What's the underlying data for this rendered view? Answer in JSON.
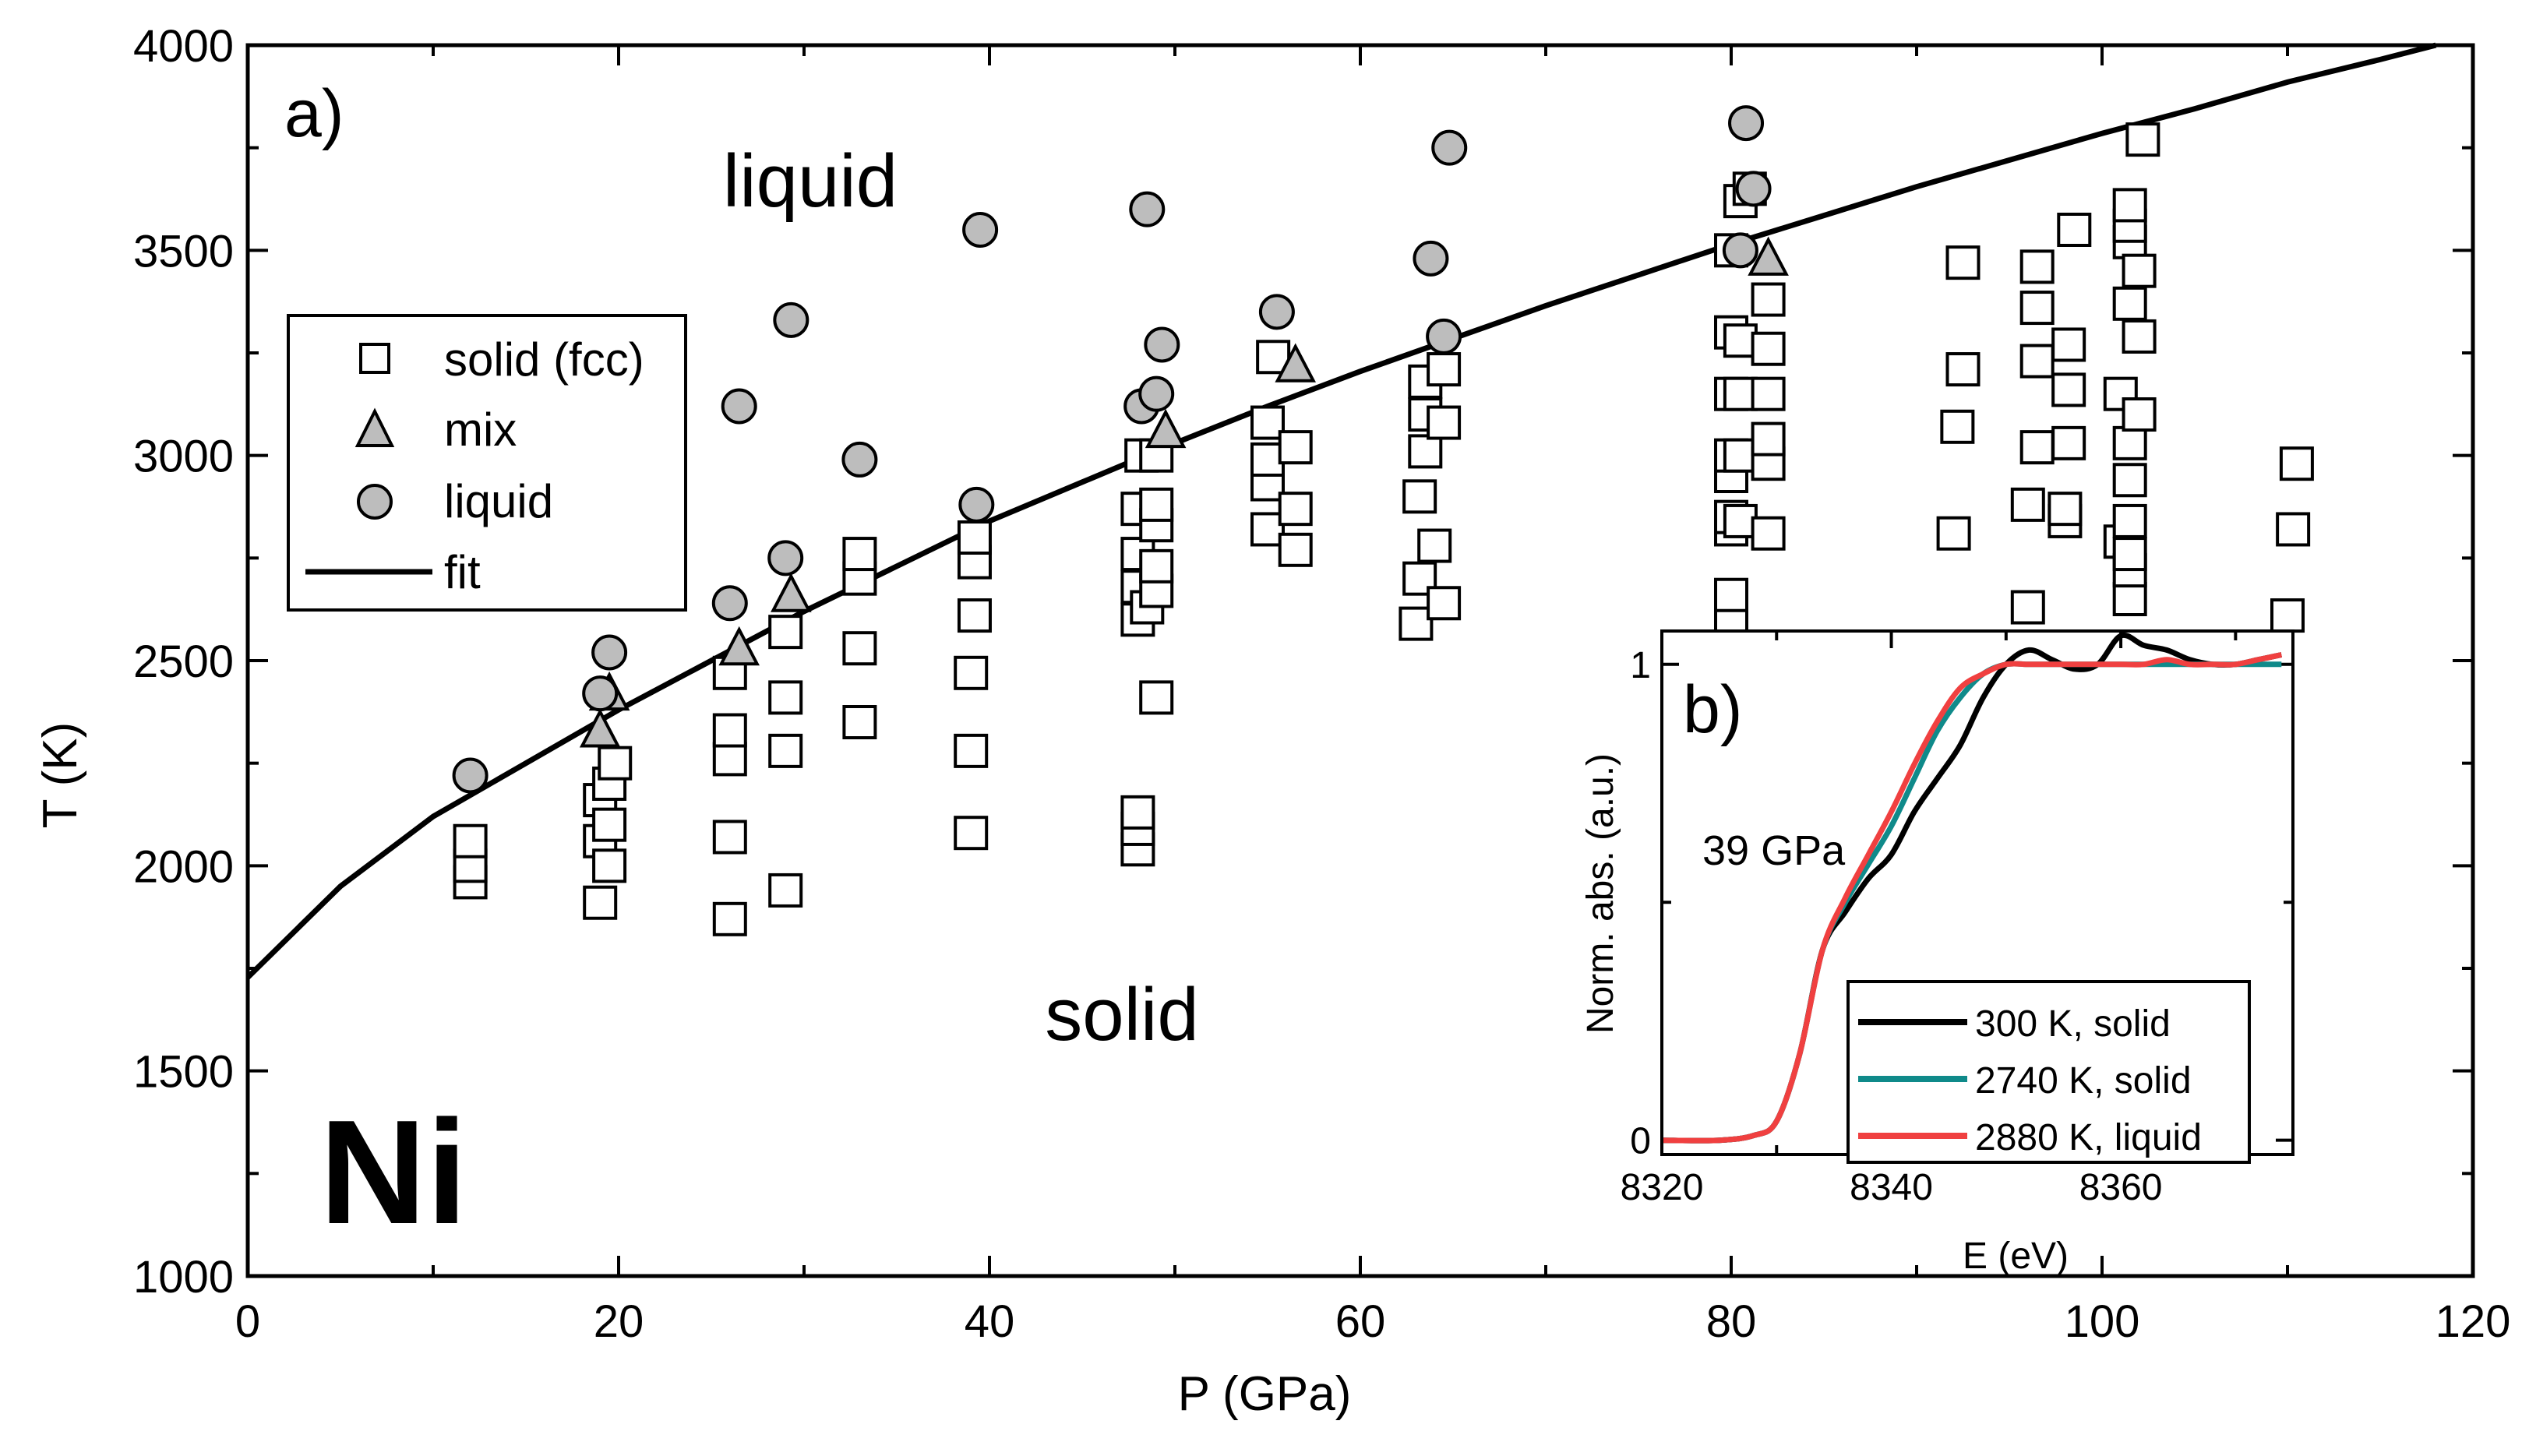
{
  "main": {
    "panel_label": "a)",
    "element_label": "Ni",
    "region_liquid": "liquid",
    "region_solid": "solid",
    "xlabel": "P (GPa)",
    "ylabel": "T (K)",
    "legend": {
      "solid": "solid (fcc)",
      "mix": "mix",
      "liquid": "liquid",
      "fit": "fit"
    }
  },
  "inset": {
    "panel_label": "b)",
    "annotation": "39 GPa",
    "xlabel": "E (eV)",
    "ylabel": "Norm. abs. (a.u.)",
    "legend": {
      "s300": "300 K, solid",
      "s2740": "2740 K, solid",
      "s2880": "2880 K, liquid"
    }
  },
  "chart_data": [
    {
      "type": "scatter",
      "title": "",
      "xlabel": "P (GPa)",
      "ylabel": "T (K)",
      "xlim": [
        0,
        120
      ],
      "ylim": [
        1000,
        4000
      ],
      "xticks": [
        0,
        20,
        40,
        60,
        80,
        100,
        120
      ],
      "yticks": [
        1000,
        1500,
        2000,
        2500,
        3000,
        3500,
        4000
      ],
      "grid": false,
      "legend_position": "upper-left",
      "series": [
        {
          "name": "solid (fcc)",
          "marker": "open-square",
          "points": [
            [
              12,
              1960
            ],
            [
              12,
              2000
            ],
            [
              12,
              2060
            ],
            [
              19,
              1910
            ],
            [
              19,
              2060
            ],
            [
              19,
              2160
            ],
            [
              19.5,
              2000
            ],
            [
              19.5,
              2100
            ],
            [
              19.5,
              2200
            ],
            [
              19.8,
              2250
            ],
            [
              26,
              1870
            ],
            [
              26,
              2070
            ],
            [
              26,
              2260
            ],
            [
              26,
              2330
            ],
            [
              26,
              2470
            ],
            [
              29,
              1940
            ],
            [
              29,
              2280
            ],
            [
              29,
              2410
            ],
            [
              29,
              2570
            ],
            [
              33,
              2350
            ],
            [
              33,
              2530
            ],
            [
              33,
              2700
            ],
            [
              33,
              2760
            ],
            [
              39,
              2080
            ],
            [
              39,
              2280
            ],
            [
              39,
              2470
            ],
            [
              39.2,
              2610
            ],
            [
              39.2,
              2740
            ],
            [
              39.2,
              2800
            ],
            [
              48,
              2040
            ],
            [
              48,
              2090
            ],
            [
              48,
              2130
            ],
            [
              48,
              2600
            ],
            [
              48,
              2680
            ],
            [
              48,
              2760
            ],
            [
              48,
              2870
            ],
            [
              48.2,
              3000
            ],
            [
              48.5,
              2630
            ],
            [
              49,
              2410
            ],
            [
              49,
              2670
            ],
            [
              49,
              2730
            ],
            [
              49,
              2830
            ],
            [
              49,
              2880
            ],
            [
              49,
              3000
            ],
            [
              55,
              2820
            ],
            [
              55,
              2930
            ],
            [
              55,
              2990
            ],
            [
              55,
              3080
            ],
            [
              55.3,
              3240
            ],
            [
              56.5,
              2770
            ],
            [
              56.5,
              2870
            ],
            [
              56.5,
              3020
            ],
            [
              63,
              2590
            ],
            [
              63.2,
              2700
            ],
            [
              63.2,
              2900
            ],
            [
              63.5,
              3010
            ],
            [
              63.5,
              3100
            ],
            [
              63.5,
              3180
            ],
            [
              64,
              2780
            ],
            [
              64.5,
              2640
            ],
            [
              64.5,
              3080
            ],
            [
              64.5,
              3210
            ],
            [
              80,
              2610
            ],
            [
              80,
              2660
            ],
            [
              80,
              2820
            ],
            [
              80,
              2850
            ],
            [
              80,
              2950
            ],
            [
              80,
              3000
            ],
            [
              80,
              3150
            ],
            [
              80,
              3300
            ],
            [
              80,
              3500
            ],
            [
              80.5,
              2840
            ],
            [
              80.5,
              3000
            ],
            [
              80.5,
              3150
            ],
            [
              80.5,
              3280
            ],
            [
              80.5,
              3620
            ],
            [
              81,
              3650
            ],
            [
              82,
              2810
            ],
            [
              82,
              2980
            ],
            [
              82,
              3040
            ],
            [
              82,
              3150
            ],
            [
              82,
              3260
            ],
            [
              82,
              3380
            ],
            [
              92,
              2810
            ],
            [
              92.2,
              3070
            ],
            [
              92.5,
              3210
            ],
            [
              92.5,
              3470
            ],
            [
              96,
              2630
            ],
            [
              96,
              2880
            ],
            [
              96.5,
              3020
            ],
            [
              96.5,
              3230
            ],
            [
              96.5,
              3360
            ],
            [
              96.5,
              3460
            ],
            [
              98,
              2840
            ],
            [
              98,
              2870
            ],
            [
              98.2,
              3030
            ],
            [
              98.2,
              3160
            ],
            [
              98.2,
              3270
            ],
            [
              98.5,
              3550
            ],
            [
              101,
              2790
            ],
            [
              101,
              3150
            ],
            [
              101.5,
              2650
            ],
            [
              101.5,
              2720
            ],
            [
              101.5,
              2760
            ],
            [
              101.5,
              2840
            ],
            [
              101.5,
              2940
            ],
            [
              101.5,
              3030
            ],
            [
              101.5,
              3370
            ],
            [
              101.5,
              3520
            ],
            [
              101.5,
              3560
            ],
            [
              101.5,
              3610
            ],
            [
              102,
              3100
            ],
            [
              102,
              3290
            ],
            [
              102,
              3450
            ],
            [
              102.2,
              3770
            ],
            [
              110,
              2610
            ],
            [
              110.3,
              2820
            ],
            [
              110.5,
              2980
            ]
          ]
        },
        {
          "name": "mix",
          "marker": "filled-triangle",
          "points": [
            [
              19,
              2330
            ],
            [
              19.5,
              2420
            ],
            [
              26.5,
              2530
            ],
            [
              29.3,
              2660
            ],
            [
              49.5,
              3060
            ],
            [
              56.5,
              3220
            ],
            [
              82,
              3480
            ]
          ]
        },
        {
          "name": "liquid",
          "marker": "filled-circle",
          "points": [
            [
              12,
              2220
            ],
            [
              19,
              2420
            ],
            [
              19.5,
              2520
            ],
            [
              26,
              2640
            ],
            [
              26.5,
              3120
            ],
            [
              29,
              2750
            ],
            [
              29.3,
              3330
            ],
            [
              33,
              2990
            ],
            [
              39.3,
              2880
            ],
            [
              39.5,
              3550
            ],
            [
              48.2,
              3120
            ],
            [
              48.5,
              3600
            ],
            [
              49,
              3150
            ],
            [
              49.3,
              3270
            ],
            [
              55.5,
              3350
            ],
            [
              63.8,
              3480
            ],
            [
              64.5,
              3290
            ],
            [
              64.8,
              3750
            ],
            [
              80.5,
              3500
            ],
            [
              80.8,
              3810
            ],
            [
              81.2,
              3650
            ]
          ]
        },
        {
          "name": "fit",
          "type": "line",
          "points": [
            [
              0,
              1728
            ],
            [
              5,
              1950
            ],
            [
              10,
              2120
            ],
            [
              15,
              2250
            ],
            [
              20,
              2380
            ],
            [
              25,
              2500
            ],
            [
              30,
              2620
            ],
            [
              35,
              2730
            ],
            [
              40,
              2840
            ],
            [
              45,
              2935
            ],
            [
              50,
              3030
            ],
            [
              55,
              3120
            ],
            [
              60,
              3205
            ],
            [
              65,
              3285
            ],
            [
              70,
              3365
            ],
            [
              75,
              3440
            ],
            [
              80,
              3515
            ],
            [
              85,
              3585
            ],
            [
              90,
              3655
            ],
            [
              95,
              3720
            ],
            [
              100,
              3785
            ],
            [
              105,
              3845
            ],
            [
              110,
              3910
            ],
            [
              115,
              3965
            ],
            [
              118,
              4000
            ]
          ]
        }
      ]
    },
    {
      "type": "line",
      "title": "",
      "xlabel": "E (eV)",
      "ylabel": "Norm. abs. (a.u.)",
      "xlim": [
        8320,
        8375
      ],
      "ylim": [
        -0.03,
        1.07
      ],
      "xticks": [
        8320,
        8340,
        8360
      ],
      "yticks": [
        0,
        1
      ],
      "grid": false,
      "legend_position": "lower-right",
      "series": [
        {
          "name": "300 K, solid",
          "color": "#000000",
          "x": [
            8320,
            8325,
            8328,
            8330,
            8332,
            8334,
            8336,
            8338,
            8340,
            8342,
            8344,
            8346,
            8348,
            8350,
            8352,
            8354,
            8356,
            8358,
            8360,
            8362,
            8364,
            8366,
            8368,
            8370,
            8372,
            8374
          ],
          "y": [
            0,
            0,
            0.01,
            0.04,
            0.18,
            0.4,
            0.48,
            0.55,
            0.6,
            0.69,
            0.76,
            0.83,
            0.93,
            1.0,
            1.03,
            1.01,
            0.99,
            1.0,
            1.06,
            1.04,
            1.03,
            1.01,
            1.0,
            1.0,
            1.01,
            1.02
          ]
        },
        {
          "name": "2740 K, solid",
          "color": "#0f8a8a",
          "x": [
            8320,
            8325,
            8328,
            8330,
            8332,
            8334,
            8336,
            8338,
            8340,
            8342,
            8344,
            8346,
            8348,
            8350,
            8352,
            8354,
            8356,
            8358,
            8360,
            8362,
            8364,
            8366,
            8368,
            8370,
            8372,
            8374
          ],
          "y": [
            0,
            0,
            0.01,
            0.04,
            0.18,
            0.4,
            0.5,
            0.58,
            0.66,
            0.76,
            0.86,
            0.93,
            0.98,
            1.0,
            1.0,
            1.0,
            1.0,
            1.0,
            1.0,
            1.0,
            1.0,
            1.0,
            1.0,
            1.0,
            1.0,
            1.0
          ]
        },
        {
          "name": "2880 K, liquid",
          "color": "#f04040",
          "x": [
            8320,
            8325,
            8328,
            8330,
            8332,
            8334,
            8336,
            8338,
            8340,
            8342,
            8344,
            8346,
            8348,
            8350,
            8352,
            8354,
            8356,
            8358,
            8360,
            8362,
            8364,
            8366,
            8368,
            8370,
            8372,
            8374
          ],
          "y": [
            0,
            0,
            0.01,
            0.04,
            0.18,
            0.4,
            0.51,
            0.6,
            0.69,
            0.79,
            0.88,
            0.95,
            0.98,
            1.0,
            1.0,
            1.0,
            1.0,
            1.0,
            1.0,
            1.0,
            1.01,
            1.0,
            1.0,
            1.0,
            1.01,
            1.02
          ]
        }
      ]
    }
  ]
}
